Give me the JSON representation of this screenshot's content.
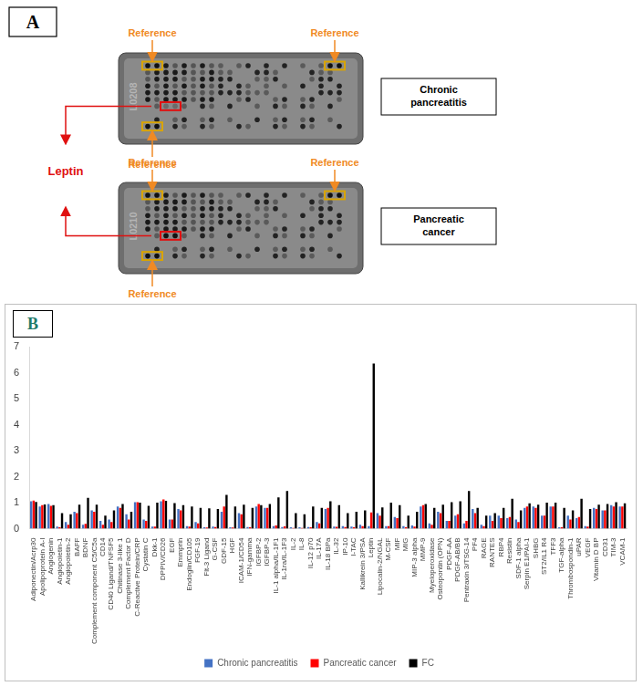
{
  "panel_a": {
    "label": "A",
    "reference_label": "Reference",
    "highlight_label": "Leptin",
    "membranes": [
      {
        "code": "L0208",
        "label": "Chronic pancreatitis"
      },
      {
        "code": "L0210",
        "label": "Pancreatic cancer"
      }
    ]
  },
  "panel_b_label": "B",
  "chart_data": {
    "type": "bar",
    "categories": [
      "Adiponectin/Acrp30",
      "Apolipoprotein A-I",
      "Angiogenin",
      "Angiopoietin-1",
      "Angiopoietin-2",
      "BAFF",
      "BDNF",
      "Complement component C5/C5a",
      "CD14",
      "CD40 Ligand/TNFSF5",
      "Chitinase 3-like 1",
      "Complement Factor D",
      "C-Reactive Protein/CRP",
      "Cystatin C",
      "Dkk-1",
      "DPPIV/CD26",
      "EGF",
      "Emmprin",
      "Endoglin/CD105",
      "FGF-19",
      "Flt-3 Ligand",
      "G-CSF",
      "GDF-15",
      "HGF",
      "ICAM-1/CD54",
      "IFN-gamma",
      "IGFBP-2",
      "IGFBP-3",
      "IL-1 alpha/IL-1F1",
      "IL-1ra/IL-1F3",
      "IL-2",
      "IL-8",
      "IL-12 p70",
      "IL-17A",
      "IL-18 BPa",
      "IL-32",
      "IP-10",
      "I-TAC",
      "Kallikrein 3/PSA",
      "Leptin",
      "Lipocalin-2/NGAL",
      "M-CSF",
      "MIF",
      "MIG",
      "MIP-3 alpha",
      "MMP-9",
      "Myeloperoxidase",
      "Osteopontin (OPN)",
      "PDGF-AA",
      "PDGF-AB/BB",
      "Pentraxin 3/TSG-14",
      "PF4",
      "RAGE",
      "RANTES",
      "RBP4",
      "Resistin",
      "SDF-1 alpha",
      "Serpin E1/PAI-1",
      "SHBG",
      "ST2/IL1 R4",
      "TFF3",
      "TGF-alpha",
      "Thrombospondin-1",
      "uPAR",
      "VEGF",
      "Vitamin D BP",
      "CD31",
      "TIM-3",
      "VCAM-1"
    ],
    "series": [
      {
        "name": "Chronic pancreatitis",
        "color": "#4472c4",
        "values": [
          1.05,
          0.85,
          0.95,
          0.08,
          0.25,
          0.65,
          0.15,
          0.7,
          0.3,
          0.35,
          0.85,
          0.55,
          1.02,
          0.35,
          0.08,
          1.05,
          0.35,
          0.75,
          0.1,
          0.25,
          0.05,
          0.08,
          0.65,
          0.05,
          0.6,
          0.06,
          0.85,
          0.8,
          0.1,
          0.06,
          0.05,
          0.05,
          0.06,
          0.25,
          0.75,
          0.08,
          0.1,
          0.08,
          0.15,
          0.1,
          0.6,
          0.1,
          0.45,
          0.1,
          0.12,
          0.85,
          0.2,
          0.65,
          0.3,
          0.5,
          0.2,
          0.75,
          0.15,
          0.5,
          0.5,
          0.4,
          0.35,
          0.8,
          0.85,
          0.5,
          0.85,
          0.05,
          0.5,
          0.4,
          0.1,
          0.8,
          0.7,
          0.9,
          0.85
        ]
      },
      {
        "name": "Pancreatic cancer",
        "color": "#ff0000",
        "values": [
          1.08,
          0.9,
          0.88,
          0.05,
          0.15,
          0.6,
          0.18,
          0.65,
          0.15,
          0.25,
          0.8,
          0.35,
          1.02,
          0.3,
          0.08,
          1.12,
          0.35,
          0.7,
          0.08,
          0.2,
          0.04,
          0.06,
          0.85,
          0.04,
          0.55,
          0.05,
          0.95,
          0.8,
          0.12,
          0.09,
          0.03,
          0.03,
          0.05,
          0.2,
          0.8,
          0.07,
          0.06,
          0.05,
          0.1,
          0.62,
          0.5,
          0.1,
          0.4,
          0.05,
          0.08,
          0.9,
          0.15,
          0.6,
          0.3,
          0.55,
          0.3,
          0.6,
          0.1,
          0.3,
          0.4,
          0.45,
          0.25,
          0.85,
          0.8,
          0.5,
          0.85,
          0.05,
          0.35,
          0.45,
          0.08,
          0.75,
          0.7,
          0.85,
          0.85
        ]
      },
      {
        "name": "FC",
        "color": "#000000",
        "values": [
          1.03,
          0.93,
          0.9,
          0.6,
          0.55,
          0.92,
          1.18,
          0.92,
          0.5,
          0.7,
          0.95,
          0.65,
          1.0,
          0.88,
          1.0,
          1.07,
          0.98,
          0.9,
          0.85,
          0.8,
          0.78,
          0.75,
          1.3,
          0.85,
          0.92,
          0.8,
          0.9,
          0.95,
          1.2,
          1.45,
          0.6,
          0.55,
          0.85,
          0.8,
          1.05,
          0.9,
          0.6,
          0.65,
          0.7,
          6.35,
          0.82,
          1.0,
          0.9,
          0.5,
          0.65,
          0.95,
          0.8,
          0.92,
          1.02,
          1.05,
          1.45,
          0.8,
          0.5,
          0.6,
          0.8,
          1.15,
          0.7,
          0.97,
          0.92,
          1.0,
          1.0,
          0.8,
          0.7,
          1.15,
          0.75,
          0.92,
          0.95,
          1.02,
          0.97
        ]
      }
    ],
    "ylim": [
      0,
      7
    ],
    "yticks": [
      0,
      1,
      2,
      3,
      4,
      5,
      6,
      7
    ],
    "grid": false,
    "legend": "bottom"
  }
}
